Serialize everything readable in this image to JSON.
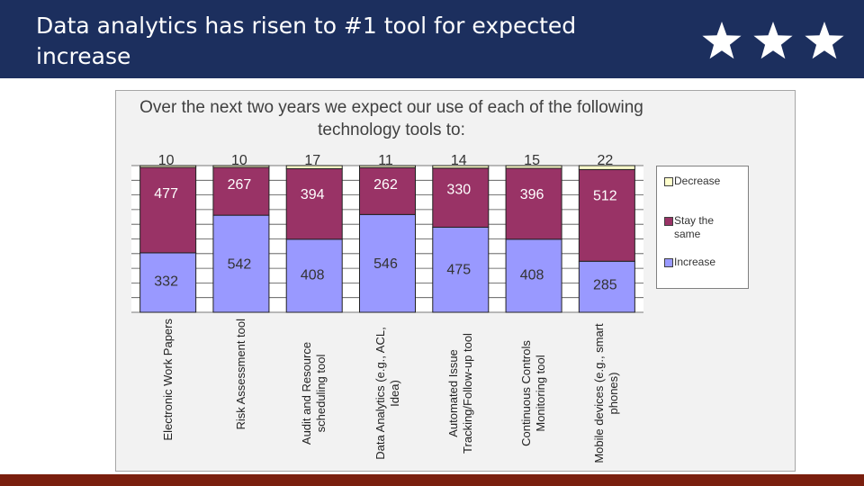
{
  "slide": {
    "title": "Data analytics has risen to #1 tool for expected increase"
  },
  "colors": {
    "header_bg": "#1c2f5e",
    "bottom_bar": "#7a1f0e",
    "increase": "#9999ff",
    "stay_same": "#993366",
    "decrease": "#ffffcc"
  },
  "icons": [
    "star-icon",
    "star-icon",
    "star-icon"
  ],
  "chart_data": {
    "type": "bar",
    "stacked": true,
    "title": "Over the next two years we expect our use of each of the following technology tools to:",
    "categories": [
      "Electronic Work Papers",
      "Risk Assessment tool",
      "Audit and Resource scheduling tool",
      "Data Analytics (e.g., ACL, Idea)",
      "Automated Issue Tracking/Follow-up tool",
      "Continuous Controls Monitoring tool",
      "Mobile devices (e.g., smart phones)"
    ],
    "series": [
      {
        "name": "Increase",
        "values": [
          332,
          542,
          408,
          546,
          475,
          408,
          285
        ]
      },
      {
        "name": "Stay the same",
        "values": [
          477,
          267,
          394,
          262,
          330,
          396,
          512
        ]
      },
      {
        "name": "Decrease",
        "values": [
          10,
          10,
          17,
          11,
          14,
          15,
          22
        ]
      }
    ],
    "legend_order": [
      "Decrease",
      "Stay the same",
      "Increase"
    ],
    "legend_position": "right",
    "grid": true
  }
}
